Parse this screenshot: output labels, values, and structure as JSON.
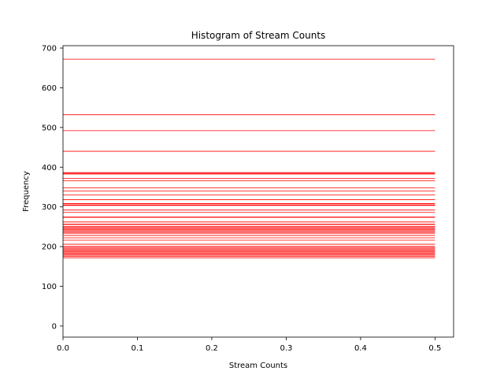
{
  "chart_data": {
    "type": "histogram",
    "title": "Histogram of Stream Counts",
    "xlabel": "Stream Counts",
    "ylabel": "Frequency",
    "xlim": [
      0.0,
      0.525
    ],
    "ylim": [
      -28,
      706
    ],
    "xticks": [
      "0.0",
      "0.1",
      "0.2",
      "0.3",
      "0.4",
      "0.5"
    ],
    "xtick_values": [
      0.0,
      0.1,
      0.2,
      0.3,
      0.4,
      0.5
    ],
    "yticks": [
      "0",
      "100",
      "200",
      "300",
      "400",
      "500",
      "600",
      "700"
    ],
    "ytick_values": [
      0,
      100,
      200,
      300,
      400,
      500,
      600,
      700
    ],
    "grid": false,
    "legend": "none",
    "bar_color": "#ff0000",
    "bar_x_range": [
      0.0,
      0.5
    ],
    "bars": [
      {
        "y": 672,
        "w": 0.8
      },
      {
        "y": 532,
        "w": 0.8
      },
      {
        "y": 492,
        "w": 0.8
      },
      {
        "y": 440,
        "w": 0.8
      },
      {
        "y": 386,
        "w": 1.2
      },
      {
        "y": 383,
        "w": 1.2
      },
      {
        "y": 372,
        "w": 0.8
      },
      {
        "y": 366,
        "w": 0.8
      },
      {
        "y": 348,
        "w": 0.8
      },
      {
        "y": 340,
        "w": 0.8
      },
      {
        "y": 330,
        "w": 0.8
      },
      {
        "y": 318,
        "w": 0.8
      },
      {
        "y": 308,
        "w": 1.2
      },
      {
        "y": 304,
        "w": 1.2
      },
      {
        "y": 292,
        "w": 0.8
      },
      {
        "y": 286,
        "w": 0.8
      },
      {
        "y": 274,
        "w": 1.2
      },
      {
        "y": 262,
        "w": 0.8
      },
      {
        "y": 256,
        "w": 1.2
      },
      {
        "y": 250,
        "w": 1.2
      },
      {
        "y": 246,
        "w": 1.2
      },
      {
        "y": 242,
        "w": 1.2
      },
      {
        "y": 238,
        "w": 1.2
      },
      {
        "y": 234,
        "w": 1.2
      },
      {
        "y": 228,
        "w": 0.8
      },
      {
        "y": 222,
        "w": 0.8
      },
      {
        "y": 216,
        "w": 0.8
      },
      {
        "y": 206,
        "w": 0.8
      },
      {
        "y": 200,
        "w": 1.2
      },
      {
        "y": 196,
        "w": 1.2
      },
      {
        "y": 192,
        "w": 1.2
      },
      {
        "y": 188,
        "w": 1.2
      },
      {
        "y": 184,
        "w": 1.2
      },
      {
        "y": 180,
        "w": 1.2
      },
      {
        "y": 176,
        "w": 1.2
      },
      {
        "y": 172,
        "w": 0.8
      }
    ]
  }
}
